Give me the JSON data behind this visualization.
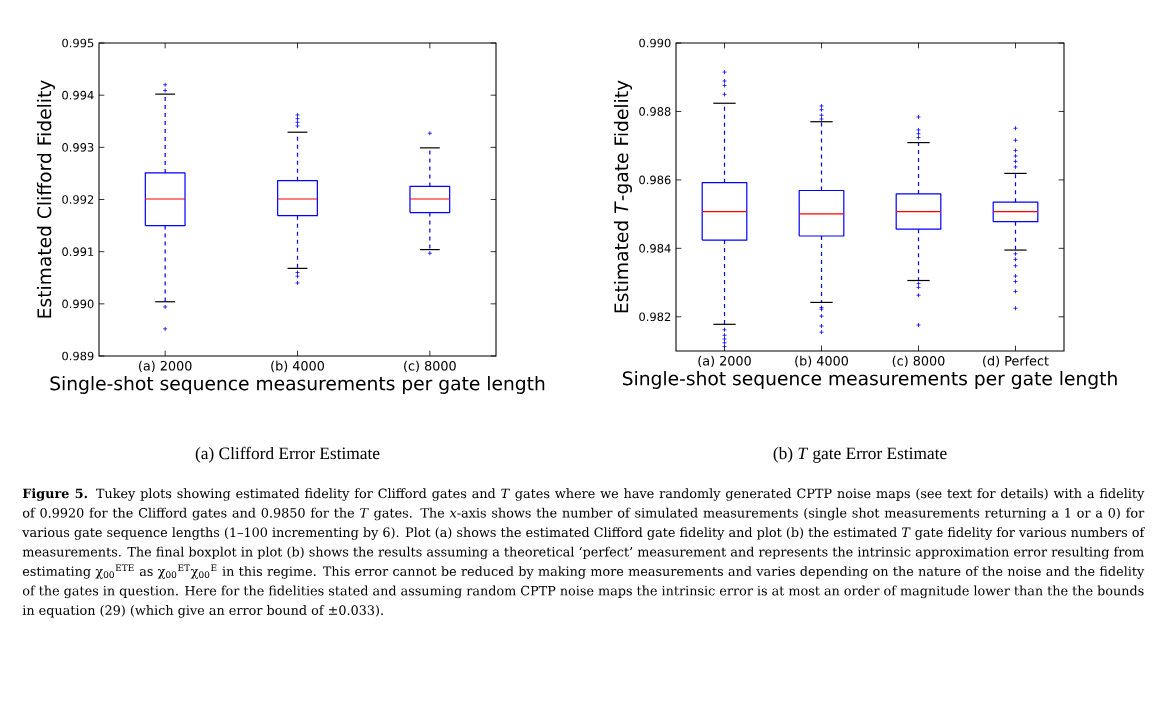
{
  "chart_data": [
    {
      "type": "box",
      "title": "(a) Clifford Error Estimate",
      "xlabel": "Single-shot sequence measurements per gate length",
      "ylabel": "Estimated Clifford Fidelity",
      "color": "#0000ff",
      "categories": [
        "(a) 2000",
        "(b) 4000",
        "(c) 8000"
      ],
      "boxes": [
        {
          "low": 0.99004,
          "q1": 0.9915,
          "median": 0.99201,
          "q3": 0.99251,
          "high": 0.99402,
          "outliers": [
            0.9942,
            0.99409,
            0.98994,
            0.98952
          ]
        },
        {
          "low": 0.99068,
          "q1": 0.99169,
          "median": 0.99201,
          "q3": 0.99236,
          "high": 0.99329,
          "outliers": [
            0.99362,
            0.99355,
            0.99348,
            0.99341,
            0.9906,
            0.99053,
            0.9904
          ]
        },
        {
          "low": 0.99104,
          "q1": 0.99175,
          "median": 0.99201,
          "q3": 0.99225,
          "high": 0.99299,
          "outliers": [
            0.99327,
            0.99097
          ]
        }
      ],
      "ylim": [
        0.989,
        0.995
      ],
      "yticks": [
        {
          "value": 0.989,
          "label": "0.989"
        },
        {
          "value": 0.99,
          "label": "0.990"
        },
        {
          "value": 0.991,
          "label": "0.991"
        },
        {
          "value": 0.992,
          "label": "0.992"
        },
        {
          "value": 0.993,
          "label": "0.993"
        },
        {
          "value": 0.994,
          "label": "0.994"
        },
        {
          "value": 0.995,
          "label": "0.995"
        }
      ],
      "annotations": [
        "**Figure 5.** Tukey plots showing estimated fidelity for Clifford gates and *T* gates where we have randomly generated CPTP noise maps (see text for details) with a fidelity of 0.9920 for the Clifford gates and 0.9850 for the *T* gates. The *x*-axis shows the number of simulated measurements (single shot measurements returning a 1 or a 0) for various gate sequence lengths (1–100 incrementing by 6). Plot (a) shows the estimated Clifford gate fidelity and plot (b) the estimated *T* gate fidelity for various numbers of measurements. The final boxplot in plot (b) shows the results assuming a theoretical ‘perfect’ measurement and represents the intrinsic approximation error resulting from estimating χ$_{00}$$^{ETE}$ as χ$_{00}$$^{ET}$χ$_{00}$$^{E}$ in this regime. This error cannot be reduced by making more measurements and varies depending on the nature of the noise and the fidelity of the gates in question. Here for the fidelities stated and assuming random CPTP noise maps the intrinsic error is at most an order of magnitude lower than the the bounds in equation (29) (which give an error bound of ±0.033)."
      ]
    },
    {
      "type": "box",
      "title": "(b) *T* gate Error Estimate",
      "xlabel": "Single-shot sequence measurements per gate length",
      "ylabel": "Estimated *T*-gate Fidelity",
      "color": "#0000ff",
      "categories": [
        "(a) 2000",
        "(b) 4000",
        "(c) 8000",
        "(d) Perfect"
      ],
      "boxes": [
        {
          "low": 0.98178,
          "q1": 0.98424,
          "median": 0.98507,
          "q3": 0.98592,
          "high": 0.98824,
          "outliers": [
            0.98915,
            0.98889,
            0.98876,
            0.9885,
            0.98162,
            0.98146,
            0.98135,
            0.98124,
            0.98113
          ]
        },
        {
          "low": 0.98242,
          "q1": 0.98436,
          "median": 0.98501,
          "q3": 0.98569,
          "high": 0.9877,
          "outliers": [
            0.98816,
            0.98805,
            0.98789,
            0.98778,
            0.98227,
            0.98222,
            0.98202,
            0.98173,
            0.98155
          ]
        },
        {
          "low": 0.98306,
          "q1": 0.98456,
          "median": 0.98507,
          "q3": 0.98559,
          "high": 0.98709,
          "outliers": [
            0.98784,
            0.98746,
            0.98735,
            0.98724,
            0.98297,
            0.98286,
            0.98263,
            0.98176
          ]
        },
        {
          "low": 0.98395,
          "q1": 0.98478,
          "median": 0.98507,
          "q3": 0.98535,
          "high": 0.98619,
          "outliers": [
            0.98751,
            0.98716,
            0.98686,
            0.9867,
            0.98654,
            0.98638,
            0.98384,
            0.98368,
            0.98349,
            0.98319,
            0.98303,
            0.98274,
            0.98225
          ]
        }
      ],
      "ylim": [
        0.981,
        0.99
      ],
      "yticks": [
        {
          "value": 0.982,
          "label": "0.982"
        },
        {
          "value": 0.984,
          "label": "0.984"
        },
        {
          "value": 0.986,
          "label": "0.986"
        },
        {
          "value": 0.988,
          "label": "0.988"
        },
        {
          "value": 0.99,
          "label": "0.990"
        }
      ]
    }
  ]
}
